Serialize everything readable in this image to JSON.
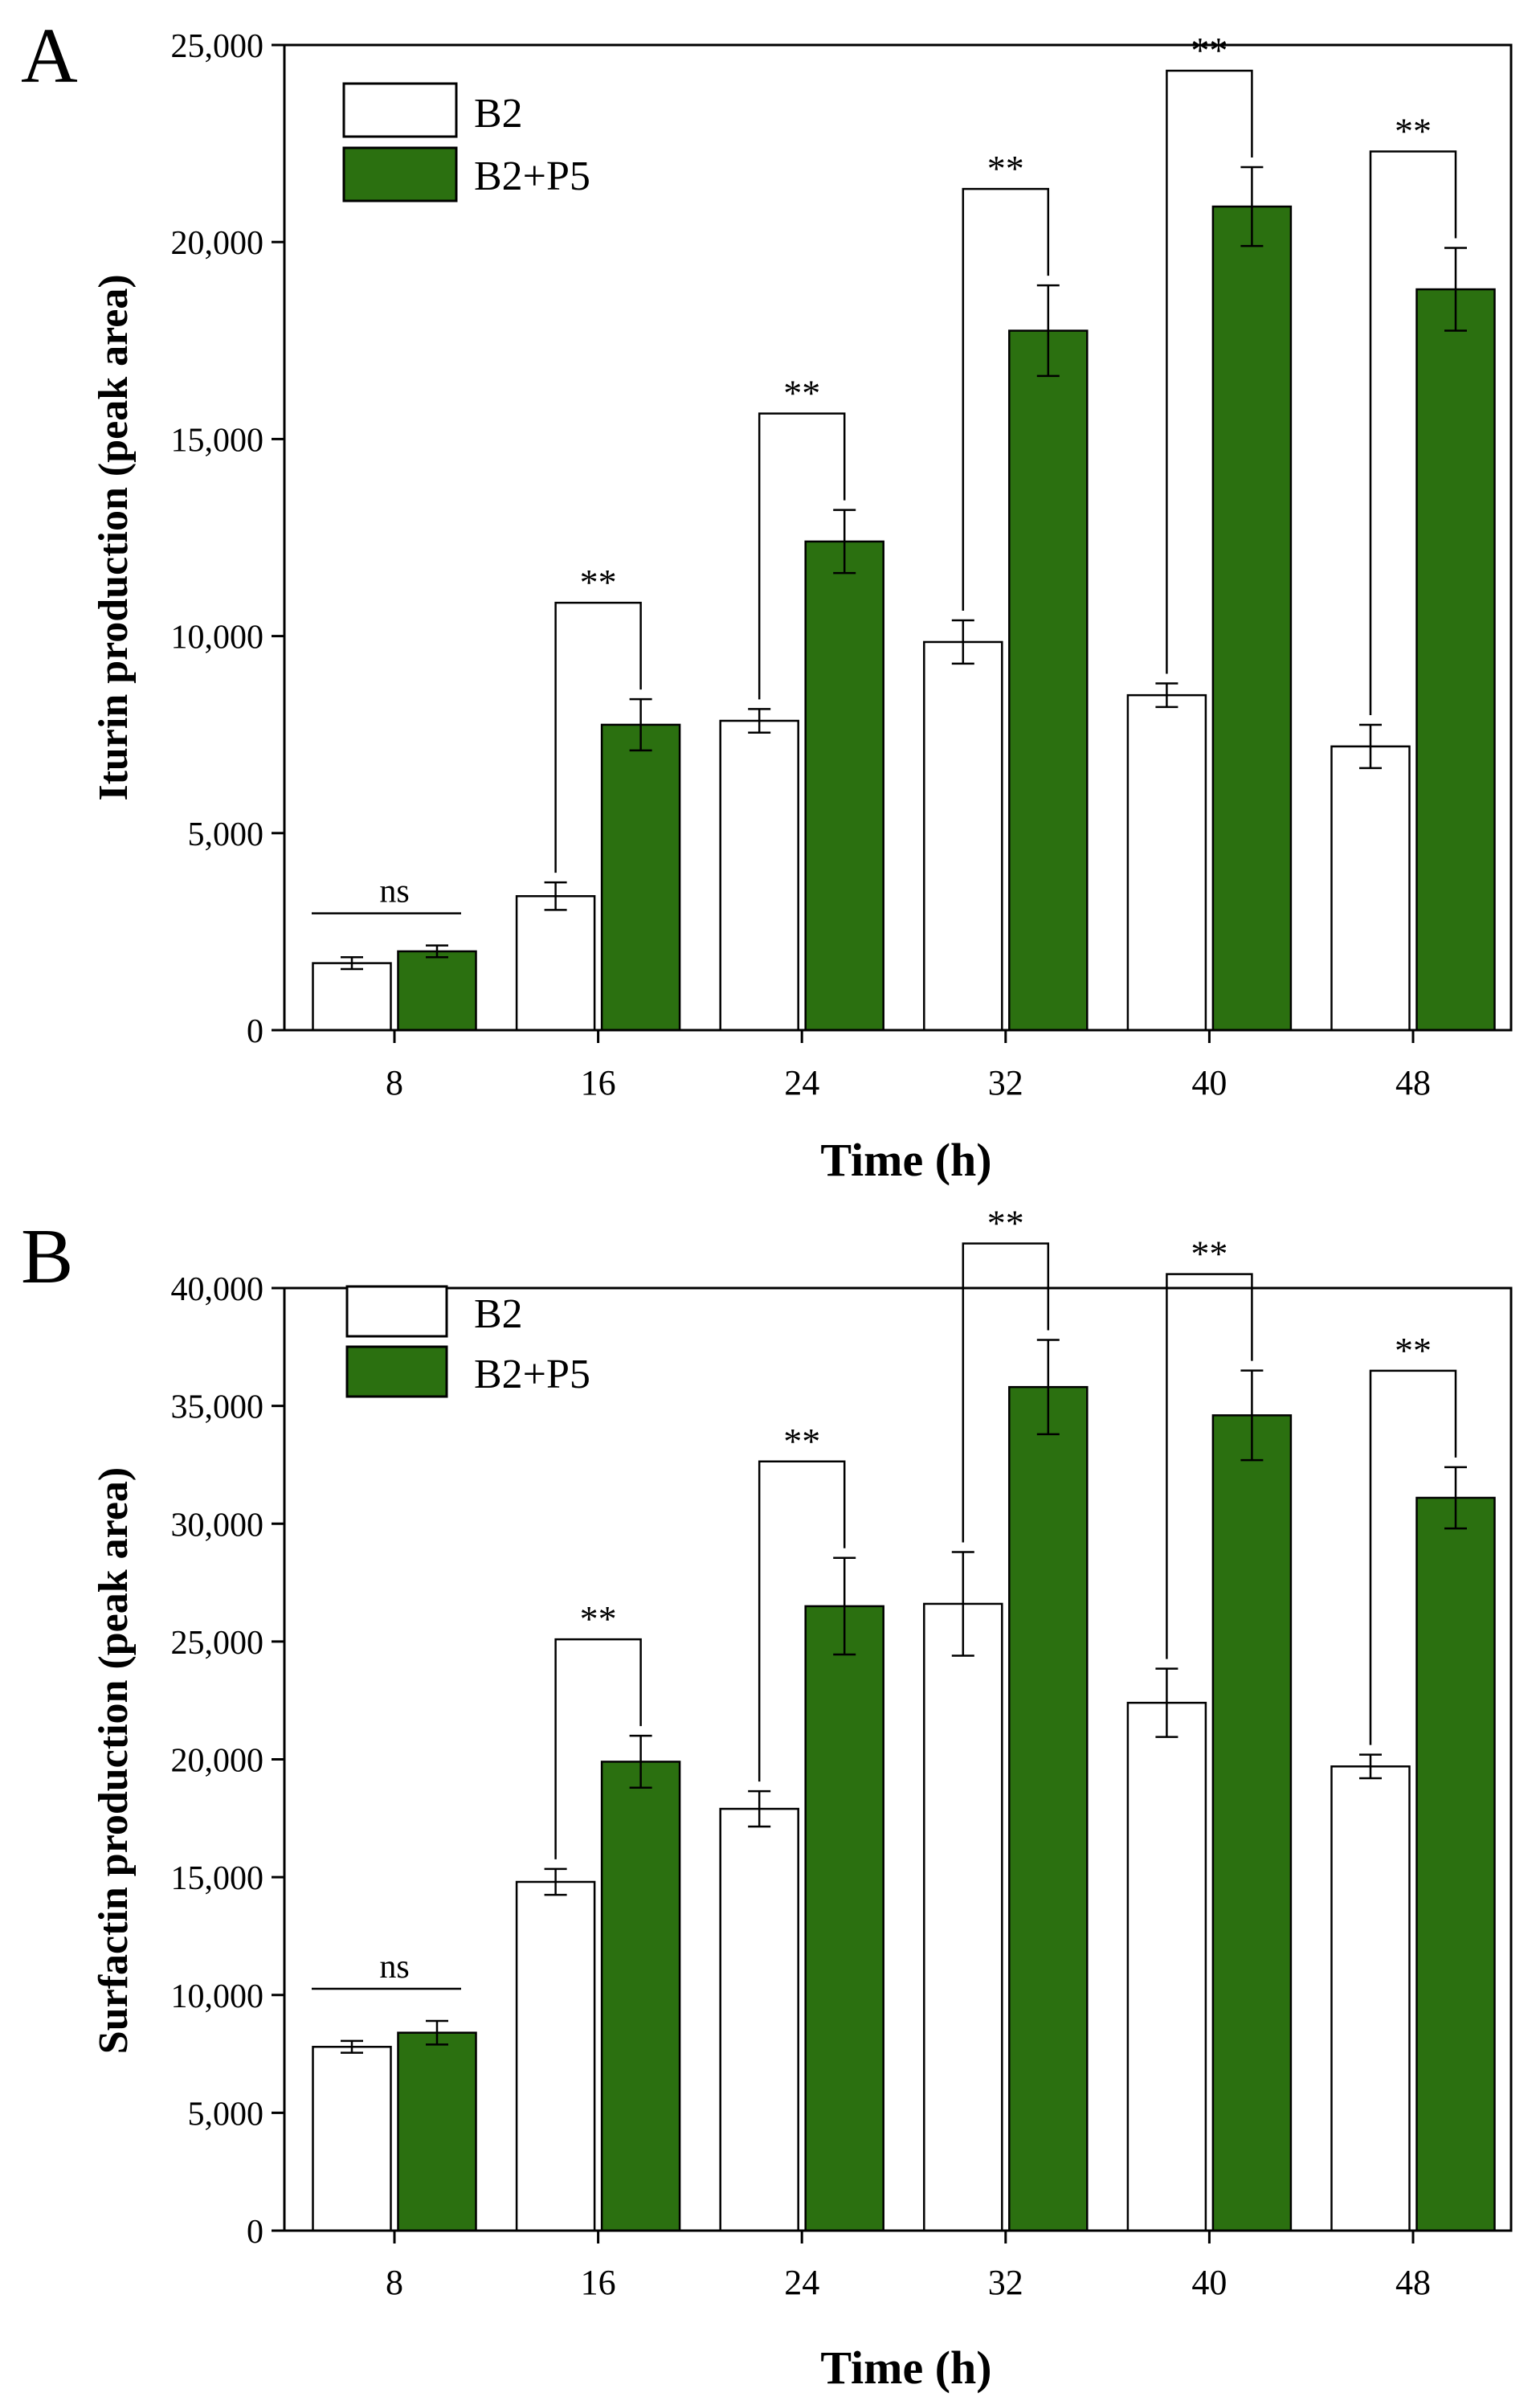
{
  "chart_data": [
    {
      "panel_label": "A",
      "type": "bar",
      "title": "",
      "xlabel": "Time (h)",
      "ylabel": "Iturin production (peak area)",
      "categories": [
        "8",
        "16",
        "24",
        "32",
        "40",
        "48"
      ],
      "ylim": [
        0,
        25000
      ],
      "yticks": [
        0,
        5000,
        10000,
        15000,
        20000,
        25000
      ],
      "ytick_labels": [
        "0",
        "5,000",
        "10,000",
        "15,000",
        "20,000",
        "25,000"
      ],
      "legend_position": "top-left",
      "grid": false,
      "series": [
        {
          "name": "B2",
          "color": "#ffffff",
          "values": [
            1700,
            3400,
            7850,
            9850,
            8500,
            7200
          ],
          "errors": [
            150,
            350,
            300,
            550,
            300,
            550
          ]
        },
        {
          "name": "B2+P5",
          "color": "#2b7010",
          "values": [
            2000,
            7750,
            12400,
            17750,
            20900,
            18800
          ],
          "errors": [
            150,
            650,
            800,
            1150,
            1000,
            1050
          ]
        }
      ],
      "significance": [
        "ns",
        "**",
        "**",
        "**",
        "**",
        "**"
      ]
    },
    {
      "panel_label": "B",
      "type": "bar",
      "title": "",
      "xlabel": "Time (h)",
      "ylabel": "Surfactin production (peak area)",
      "categories": [
        "8",
        "16",
        "24",
        "32",
        "40",
        "48"
      ],
      "ylim": [
        0,
        40000
      ],
      "yticks": [
        0,
        5000,
        10000,
        15000,
        20000,
        25000,
        30000,
        35000,
        40000
      ],
      "ytick_labels": [
        "0",
        "5,000",
        "10,000",
        "15,000",
        "20,000",
        "25,000",
        "30,000",
        "35,000",
        "40,000"
      ],
      "legend_position": "top-left",
      "grid": false,
      "series": [
        {
          "name": "B2",
          "color": "#ffffff",
          "values": [
            7800,
            14800,
            17900,
            26600,
            22400,
            19700
          ],
          "errors": [
            250,
            550,
            750,
            2200,
            1450,
            500
          ]
        },
        {
          "name": "B2+P5",
          "color": "#2b7010",
          "values": [
            8400,
            19900,
            26500,
            35800,
            34600,
            31100
          ],
          "errors": [
            500,
            1100,
            2050,
            2000,
            1900,
            1300
          ]
        }
      ],
      "significance": [
        "ns",
        "**",
        "**",
        "**",
        "**",
        "**"
      ]
    }
  ]
}
